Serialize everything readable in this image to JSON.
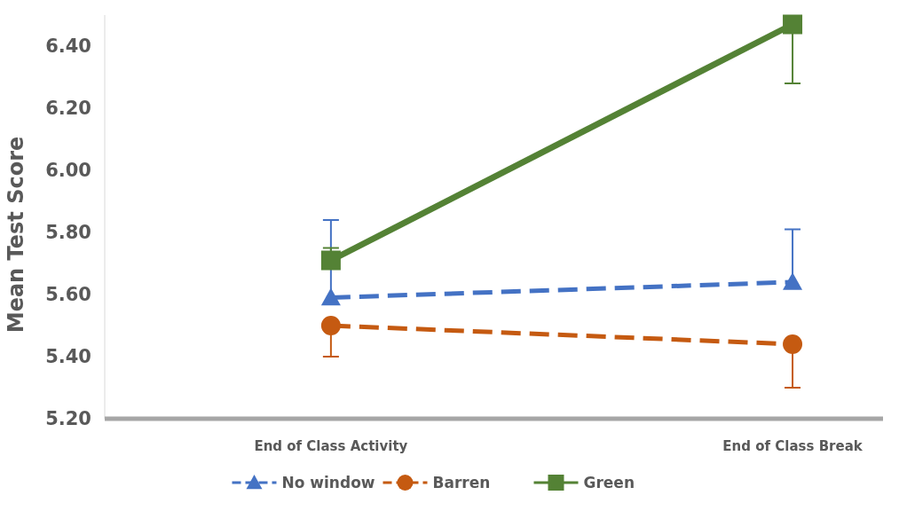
{
  "chart_data": {
    "type": "line",
    "ylabel": "Mean Test Score",
    "categories": [
      "End of Class Activity",
      "End of Class Break"
    ],
    "series": [
      {
        "name": "No window",
        "color": "#4472c4",
        "values": [
          5.59,
          5.64
        ],
        "errors": [
          [
            5.59,
            5.84
          ],
          [
            5.64,
            5.81
          ]
        ],
        "marker": "triangle",
        "line_style": "dashed"
      },
      {
        "name": "Barren",
        "color": "#c55a11",
        "values": [
          5.5,
          5.44
        ],
        "errors": [
          [
            5.4,
            5.5
          ],
          [
            5.3,
            5.44
          ]
        ],
        "marker": "circle",
        "line_style": "dashed"
      },
      {
        "name": "Green",
        "color": "#548235",
        "values": [
          5.71,
          6.47
        ],
        "errors": [
          [
            5.71,
            5.75
          ],
          [
            6.28,
            6.47
          ]
        ],
        "marker": "square",
        "line_style": "solid"
      }
    ],
    "yticks": [
      {
        "value": 5.2,
        "label": "5.20"
      },
      {
        "value": 5.4,
        "label": "5.40"
      },
      {
        "value": 5.6,
        "label": "5.60"
      },
      {
        "value": 5.8,
        "label": "5.80"
      },
      {
        "value": 6.0,
        "label": "6.00"
      },
      {
        "value": 6.2,
        "label": "6.20"
      },
      {
        "value": 6.4,
        "label": "6.40"
      }
    ],
    "ylim": [
      5.2,
      6.5
    ],
    "grid": false,
    "legend": "bottom"
  }
}
